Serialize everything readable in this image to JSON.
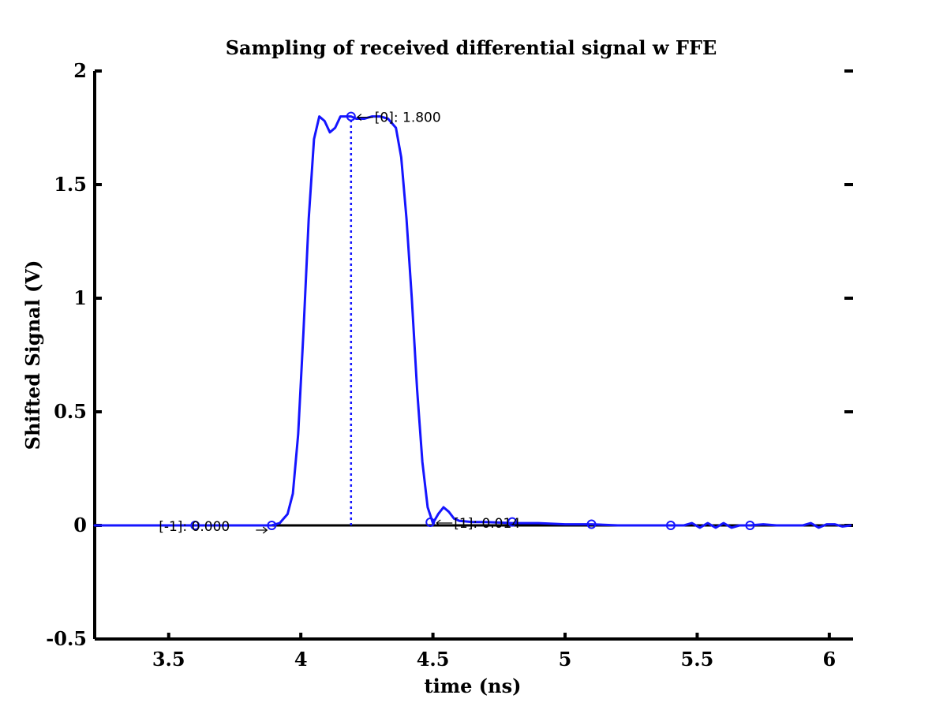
{
  "colors": {
    "signal": "#1515ff",
    "axis": "#000000",
    "baseline": "#000000",
    "background": "#ffffff"
  },
  "chart_data": {
    "type": "line",
    "title": "Sampling of received differential signal w FFE",
    "xlabel": "time (ns)",
    "ylabel": "Shifted Signal (V)",
    "xlim": [
      3.22,
      6.09
    ],
    "ylim": [
      -0.5,
      2.0
    ],
    "grid": false,
    "legend": "none",
    "x_ticks": [
      3.5,
      4,
      4.5,
      5,
      5.5,
      6
    ],
    "x_tick_labels": [
      "3.5",
      "4",
      "4.5",
      "5",
      "5.5",
      "6"
    ],
    "y_ticks": [
      -0.5,
      0,
      0.5,
      1,
      1.5,
      2
    ],
    "y_tick_labels": [
      "-0.5",
      "0",
      "0.5",
      "1",
      "1.5",
      "2"
    ],
    "baseline_y": 0,
    "series": [
      {
        "style": "solid",
        "x": [
          3.22,
          3.3,
          3.4,
          3.5,
          3.6,
          3.7,
          3.8,
          3.85,
          3.89,
          3.92,
          3.95,
          3.97,
          3.99,
          4.01,
          4.03,
          4.05,
          4.07,
          4.09,
          4.11,
          4.13,
          4.15,
          4.17,
          4.19,
          4.21,
          4.24,
          4.27,
          4.3,
          4.33,
          4.36,
          4.38,
          4.4,
          4.42,
          4.44,
          4.46,
          4.48,
          4.5,
          4.52,
          4.54,
          4.56,
          4.58,
          4.6,
          4.65,
          4.7,
          4.8,
          4.9,
          5.0,
          5.1,
          5.2,
          5.3,
          5.4,
          5.45,
          5.48,
          5.51,
          5.54,
          5.57,
          5.6,
          5.63,
          5.66,
          5.7,
          5.75,
          5.8,
          5.85,
          5.9,
          5.93,
          5.96,
          5.99,
          6.02,
          6.05,
          6.08
        ],
        "y": [
          0.0,
          0.0,
          0.0,
          0.0,
          0.0,
          0.0,
          0.0,
          0.0,
          0.0,
          0.01,
          0.05,
          0.14,
          0.4,
          0.85,
          1.35,
          1.7,
          1.8,
          1.78,
          1.73,
          1.75,
          1.8,
          1.8,
          1.8,
          1.79,
          1.79,
          1.8,
          1.8,
          1.79,
          1.75,
          1.62,
          1.35,
          1.0,
          0.6,
          0.28,
          0.08,
          0.01,
          0.05,
          0.08,
          0.06,
          0.03,
          0.02,
          0.015,
          0.015,
          0.01,
          0.01,
          0.005,
          0.005,
          0.0,
          0.0,
          0.0,
          0.0,
          0.01,
          -0.01,
          0.01,
          -0.01,
          0.01,
          -0.01,
          0.0,
          0.0,
          0.005,
          0.0,
          0.0,
          0.0,
          0.01,
          -0.01,
          0.005,
          0.005,
          -0.005,
          0.0
        ]
      },
      {
        "style": "markers",
        "marker": "circle",
        "x": [
          3.6,
          3.89,
          4.19,
          4.49,
          4.8,
          5.1,
          5.4,
          5.7
        ],
        "y": [
          0.0,
          0.0,
          1.8,
          0.014,
          0.015,
          0.005,
          0.0,
          0.0
        ]
      }
    ],
    "cursor_line": {
      "x": 4.19,
      "y_from": 0,
      "y_to": 1.8,
      "style": "dotted"
    },
    "annotations": [
      {
        "text": "[0]: 1.800",
        "x": 4.19,
        "y": 1.8,
        "arrow": "left",
        "anchor": "right"
      },
      {
        "text": "[-1]: 0.000",
        "x": 3.6,
        "y": 0.0,
        "arrow": "none",
        "anchor": "left"
      },
      {
        "text": "[1]: 0.014",
        "x": 4.49,
        "y": 0.014,
        "arrow": "left",
        "anchor": "right"
      }
    ]
  }
}
